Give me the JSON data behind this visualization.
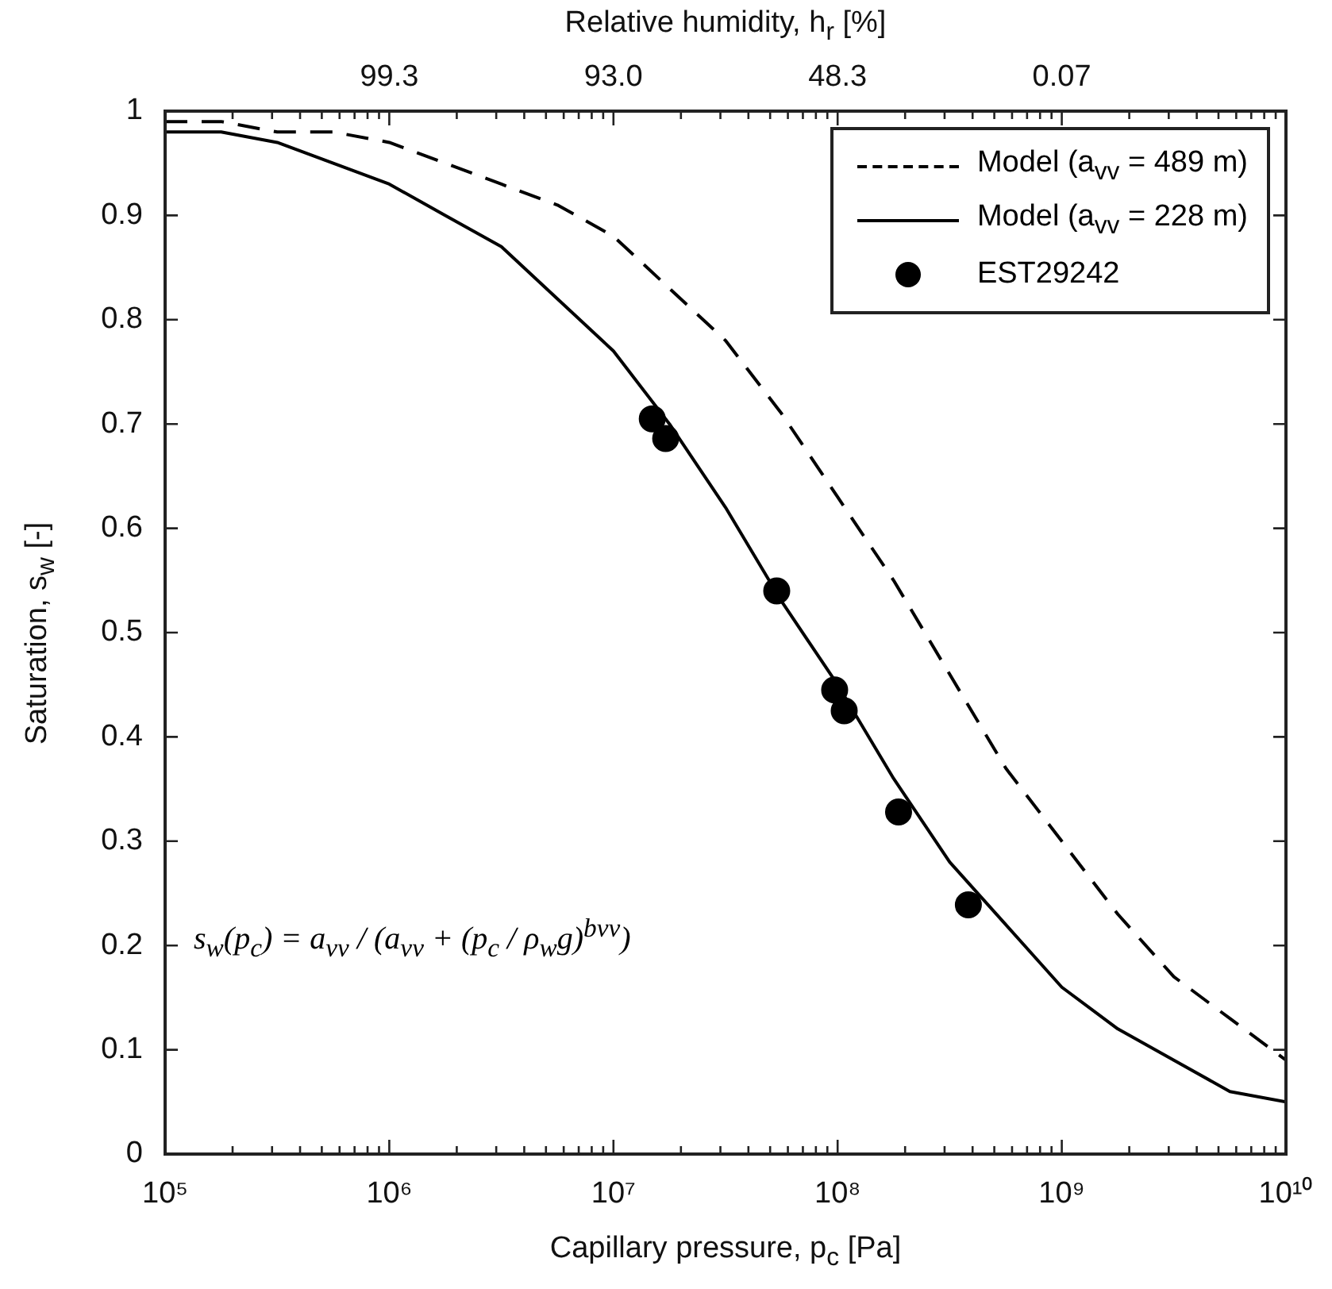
{
  "chart_data": {
    "type": "line",
    "xlabel": "Capillary pressure, p$_{c}$ [Pa]",
    "ylabel": "Saturation, s$_{w}$ [-]",
    "x2label": "Relative humidity, h$_{r}$ [%]",
    "log": "x",
    "legend": "top right",
    "xlim": [
      100000,
      10000000000
    ],
    "ylim": [
      0,
      1
    ],
    "xticks": [
      {
        "value": 100000,
        "label": "10⁵"
      },
      {
        "value": 1000000,
        "label": "10⁶"
      },
      {
        "value": 10000000,
        "label": "10⁷"
      },
      {
        "value": 100000000,
        "label": "10⁸"
      },
      {
        "value": 1000000000,
        "label": "10⁹"
      },
      {
        "value": 10000000000,
        "label": "10¹⁰"
      },
      {
        "value": 200000,
        "label": null
      },
      {
        "value": 300000,
        "label": null
      },
      {
        "value": 400000,
        "label": null
      },
      {
        "value": 500000,
        "label": null
      },
      {
        "value": 600000,
        "label": null
      },
      {
        "value": 700000,
        "label": null
      },
      {
        "value": 800000,
        "label": null
      },
      {
        "value": 900000,
        "label": null
      },
      {
        "value": 2000000,
        "label": null
      },
      {
        "value": 3000000,
        "label": null
      },
      {
        "value": 4000000,
        "label": null
      },
      {
        "value": 5000000,
        "label": null
      },
      {
        "value": 6000000,
        "label": null
      },
      {
        "value": 7000000,
        "label": null
      },
      {
        "value": 8000000,
        "label": null
      },
      {
        "value": 9000000,
        "label": null
      },
      {
        "value": 20000000,
        "label": null
      },
      {
        "value": 30000000,
        "label": null
      },
      {
        "value": 40000000,
        "label": null
      },
      {
        "value": 50000000,
        "label": null
      },
      {
        "value": 60000000,
        "label": null
      },
      {
        "value": 70000000,
        "label": null
      },
      {
        "value": 80000000,
        "label": null
      },
      {
        "value": 90000000,
        "label": null
      },
      {
        "value": 200000000,
        "label": null
      },
      {
        "value": 300000000,
        "label": null
      },
      {
        "value": 400000000,
        "label": null
      },
      {
        "value": 500000000,
        "label": null
      },
      {
        "value": 600000000,
        "label": null
      },
      {
        "value": 700000000,
        "label": null
      },
      {
        "value": 800000000,
        "label": null
      },
      {
        "value": 900000000,
        "label": null
      },
      {
        "value": 2000000000,
        "label": null
      },
      {
        "value": 3000000000,
        "label": null
      },
      {
        "value": 4000000000,
        "label": null
      },
      {
        "value": 5000000000,
        "label": null
      },
      {
        "value": 6000000000,
        "label": null
      },
      {
        "value": 7000000000,
        "label": null
      },
      {
        "value": 8000000000,
        "label": null
      },
      {
        "value": 9000000000,
        "label": null
      }
    ],
    "yticks": [
      0,
      {
        "value": 0.1,
        "label": "0.1"
      },
      {
        "value": 0.2,
        "label": "0.2"
      },
      {
        "value": 0.3,
        "label": "0.3"
      },
      {
        "value": 0.4,
        "label": "0.4"
      },
      {
        "value": 0.5,
        "label": "0.5"
      },
      {
        "value": 0.6,
        "label": "0.6"
      },
      {
        "value": 0.7,
        "label": "0.7"
      },
      {
        "value": 0.8,
        "label": "0.8"
      },
      {
        "value": 0.9,
        "label": "0.9"
      },
      1
    ],
    "x": [
      100000,
      177800,
      316200,
      562300,
      1000000,
      1778000,
      3162000,
      5623000,
      10000000,
      17780000,
      31620000,
      56230000,
      100000000,
      177800000,
      316200000,
      562300000,
      1000000000,
      1778000000,
      3162000000,
      5623000000,
      10000000000
    ],
    "series": [
      {
        "name": "Model  (a$_{vv}$ = 489 m)",
        "color": "#000000",
        "line_style": "dashed",
        "marker": "none",
        "values": [
          0.99,
          0.99,
          0.98,
          0.98,
          0.97,
          0.95,
          0.93,
          0.91,
          0.88,
          0.83,
          0.78,
          0.71,
          0.63,
          0.55,
          0.46,
          0.37,
          0.3,
          0.23,
          0.17,
          0.13,
          0.09
        ]
      },
      {
        "name": "Model  (a$_{vv}$ = 228 m)",
        "color": "#000000",
        "line_style": "solid",
        "marker": "none",
        "values": [
          0.98,
          0.98,
          0.97,
          0.95,
          0.93,
          0.9,
          0.87,
          0.82,
          0.77,
          0.7,
          0.62,
          0.53,
          0.45,
          0.36,
          0.28,
          0.22,
          0.16,
          0.12,
          0.09,
          0.06,
          0.05
        ]
      },
      {
        "name": "EST29242",
        "type": "scatter",
        "color": "#000000",
        "marker": "circle",
        "x": [
          14900000,
          17100000,
          53500000,
          97000000,
          107000000,
          187000000,
          383000000
        ],
        "values": [
          0.705,
          0.686,
          0.54,
          0.445,
          0.425,
          0.328,
          0.239
        ]
      }
    ],
    "annotations": [
      {
        "text": "99.3",
        "x": 1000000
      },
      {
        "text": "93.0",
        "x": 10000000
      },
      {
        "text": "48.3",
        "x": 100000000
      },
      {
        "text": "0.07",
        "x": 1000000000
      },
      "s$_{w}$(p$_{c}$) = a$_{vv}$ / (a$_{vv}$ + (p$_{c}$ / ρ$_{w}$g)$^{bvv}$)"
    ]
  }
}
